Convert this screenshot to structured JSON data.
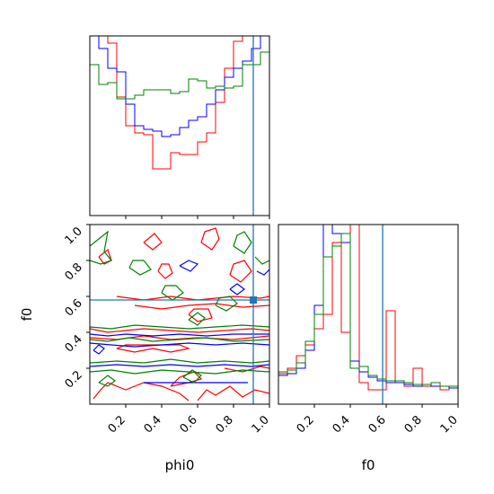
{
  "colors": {
    "red": "#ff0000",
    "blue": "#0000ff",
    "green": "#008000",
    "truth": "#1f77b4"
  },
  "chart_data": [
    {
      "type": "histogram",
      "panel": "phi0 marginal",
      "x_bins": [
        0.0,
        0.05,
        0.1,
        0.15,
        0.2,
        0.25,
        0.3,
        0.35,
        0.4,
        0.45,
        0.5,
        0.55,
        0.6,
        0.65,
        0.7,
        0.75,
        0.8,
        0.85,
        0.9,
        0.95,
        1.0
      ],
      "truth_x": 0.91,
      "series": [
        {
          "color": "red",
          "counts": [
            1.0,
            1.0,
            0.96,
            0.66,
            0.5,
            0.46,
            0.45,
            0.26,
            0.26,
            0.35,
            0.34,
            0.34,
            0.41,
            0.46,
            0.63,
            0.82,
            0.97,
            1.0,
            1.0,
            1.0
          ]
        },
        {
          "color": "blue",
          "counts": [
            1.0,
            0.93,
            0.82,
            0.8,
            0.62,
            0.5,
            0.48,
            0.47,
            0.44,
            0.45,
            0.49,
            0.53,
            0.55,
            0.62,
            0.7,
            0.77,
            0.82,
            0.86,
            0.93,
            1.0
          ]
        },
        {
          "color": "green",
          "counts": [
            0.84,
            0.73,
            0.74,
            0.65,
            0.65,
            0.67,
            0.7,
            0.7,
            0.7,
            0.68,
            0.69,
            0.76,
            0.75,
            0.71,
            0.72,
            0.71,
            0.72,
            0.84,
            0.84,
            0.91
          ]
        }
      ]
    },
    {
      "type": "contour",
      "panel": "phi0 vs f0",
      "xlabel": "phi0",
      "ylabel": "f0",
      "xlim": [
        0.0,
        1.0
      ],
      "ylim": [
        0.0,
        1.0
      ],
      "x_ticks": [
        "0.2",
        "0.4",
        "0.6",
        "0.8",
        "1.0"
      ],
      "y_ticks": [
        "0.2",
        "0.4",
        "0.6",
        "0.8",
        "1.0"
      ],
      "truth": {
        "x": 0.91,
        "y": 0.58
      }
    },
    {
      "type": "histogram",
      "panel": "f0 marginal",
      "xlabel": "f0",
      "x_ticks": [
        "0.2",
        "0.4",
        "0.6",
        "0.8",
        "1.0"
      ],
      "x_bins": [
        0.0,
        0.05,
        0.1,
        0.15,
        0.2,
        0.25,
        0.3,
        0.35,
        0.4,
        0.45,
        0.5,
        0.55,
        0.6,
        0.65,
        0.7,
        0.75,
        0.8,
        0.85,
        0.9,
        0.95,
        1.0
      ],
      "truth_x": 0.58,
      "series": [
        {
          "color": "red",
          "counts": [
            0.17,
            0.2,
            0.27,
            0.33,
            0.42,
            0.5,
            0.9,
            0.4,
            1.0,
            0.12,
            0.08,
            0.08,
            0.52,
            0.12,
            0.1,
            0.2,
            0.1,
            0.1,
            0.08,
            0.09
          ]
        },
        {
          "color": "blue",
          "counts": [
            0.16,
            0.17,
            0.2,
            0.3,
            0.55,
            1.0,
            0.95,
            0.9,
            0.24,
            0.18,
            0.15,
            0.13,
            0.12,
            0.12,
            0.11,
            0.1,
            0.11,
            0.1,
            0.1,
            0.09
          ]
        },
        {
          "color": "green",
          "counts": [
            0.18,
            0.19,
            0.23,
            0.35,
            0.5,
            0.82,
            0.88,
            0.95,
            0.2,
            0.21,
            0.16,
            0.14,
            0.13,
            0.13,
            0.12,
            0.11,
            0.11,
            0.12,
            0.1,
            0.1
          ]
        }
      ]
    }
  ]
}
